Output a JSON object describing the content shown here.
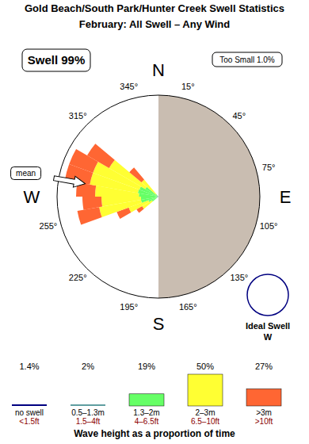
{
  "chart_data": {
    "type": "rose",
    "title": "Gold Beach/South Park/Hunter Creek Swell Statistics",
    "subtitle": "February: All Swell – Any Wind",
    "swell_label": "Swell 99%",
    "too_small_label": "Too Small 1.0%",
    "x": [
      235,
      245,
      255,
      265,
      275,
      285,
      295,
      305,
      315
    ],
    "xlim": [
      0,
      360
    ],
    "xticks": [
      {
        "value": 15,
        "label": "15°"
      },
      {
        "value": 45,
        "label": "45°"
      },
      {
        "value": 75,
        "label": "75°"
      },
      {
        "value": 105,
        "label": "105°"
      },
      {
        "value": 135,
        "label": "135°"
      },
      {
        "value": 165,
        "label": "165°"
      },
      {
        "value": 195,
        "label": "195°"
      },
      {
        "value": 225,
        "label": "225°"
      },
      {
        "value": 255,
        "label": "255°"
      },
      {
        "value": 315,
        "label": "315°"
      },
      {
        "value": 345,
        "label": "345°"
      }
    ],
    "ylim": [
      0,
      16
    ],
    "tick_labels": "x",
    "stacked": true,
    "compass": [
      {
        "value": 0,
        "label": "N"
      },
      {
        "value": 90,
        "label": "E"
      },
      {
        "value": 180,
        "label": "S"
      },
      {
        "value": 270,
        "label": "W"
      }
    ],
    "land": [
      0,
      180
    ],
    "mean": {
      "value": 280,
      "label": "mean"
    },
    "ideal_swell": {
      "label": "Ideal Swell",
      "direction": "W"
    },
    "legend_title": "Wave height as a proportion of time",
    "series": [
      {
        "name": "no swell",
        "feet": "<1.5ft",
        "color": "#000080",
        "percent": {
          "value": 1.4,
          "label": "1.4%"
        },
        "values": [
          null,
          null,
          null,
          null,
          null,
          null,
          null,
          null,
          null
        ]
      },
      {
        "name": "0.5–1.3m",
        "feet": "1.5–4ft",
        "color": "#5f9ea0",
        "percent": {
          "value": 2,
          "label": "2%"
        },
        "values": [
          0.2,
          0.2,
          0.3,
          0.3,
          0.3,
          0.3,
          0.2,
          0.2,
          0.0
        ]
      },
      {
        "name": "1.3–2m",
        "feet": "4–6.5ft",
        "color": "#66ff66",
        "percent": {
          "value": 19,
          "label": "19%"
        },
        "values": [
          1.0,
          1.5,
          2.5,
          2.5,
          2.8,
          3.0,
          3.0,
          2.2,
          0.5
        ]
      },
      {
        "name": "2–3m",
        "feet": "6.5–10ft",
        "color": "#ffff33",
        "percent": {
          "value": 50,
          "label": "50%"
        },
        "values": [
          1.8,
          3.3,
          6.7,
          6.2,
          6.9,
          7.7,
          7.8,
          6.6,
          3.0
        ]
      },
      {
        "name": ">3m",
        "feet": ">10ft",
        "color": "#ff6633",
        "percent": {
          "value": 27,
          "label": "27%"
        },
        "values": [
          1.0,
          2.0,
          3.5,
          3.0,
          3.0,
          4.0,
          4.0,
          4.0,
          2.5
        ]
      }
    ]
  }
}
